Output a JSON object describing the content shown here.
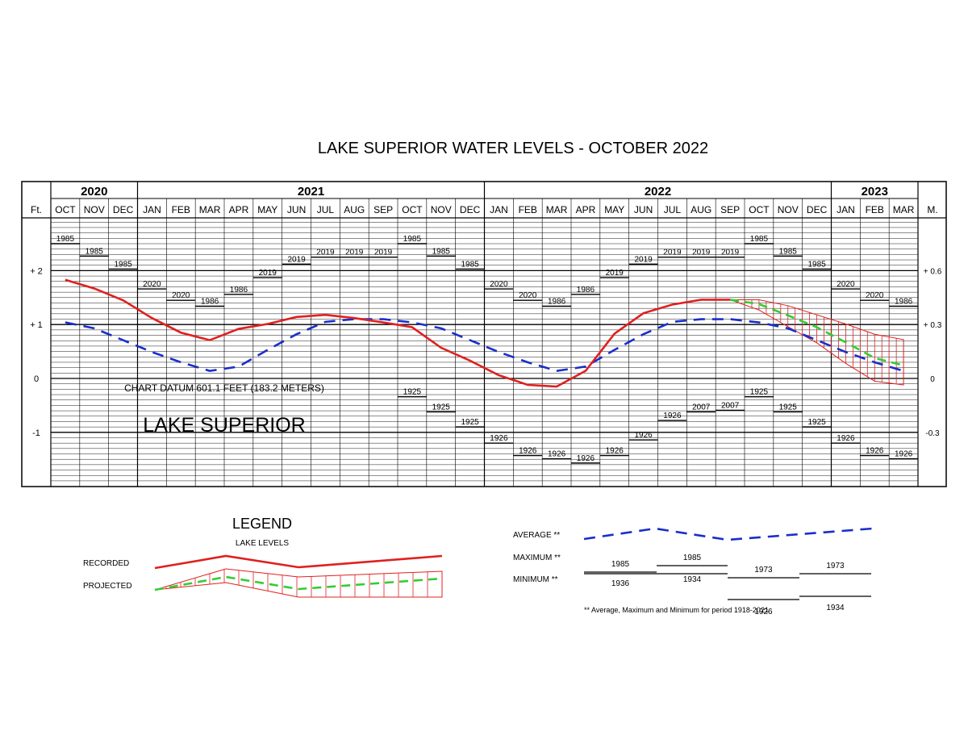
{
  "chart_data": {
    "type": "line",
    "title": "LAKE SUPERIOR WATER LEVELS - OCTOBER 2022",
    "left_unit": "Ft.",
    "right_unit": "M.",
    "years": [
      {
        "label": "2020",
        "span": [
          0,
          3
        ]
      },
      {
        "label": "2021",
        "span": [
          3,
          15
        ]
      },
      {
        "label": "2022",
        "span": [
          15,
          27
        ]
      },
      {
        "label": "2023",
        "span": [
          27,
          30
        ]
      }
    ],
    "months": [
      "OCT",
      "NOV",
      "DEC",
      "JAN",
      "FEB",
      "MAR",
      "APR",
      "MAY",
      "JUN",
      "JUL",
      "AUG",
      "SEP",
      "OCT",
      "NOV",
      "DEC",
      "JAN",
      "FEB",
      "MAR",
      "APR",
      "MAY",
      "JUN",
      "JUL",
      "AUG",
      "SEP",
      "OCT",
      "NOV",
      "DEC",
      "JAN",
      "FEB",
      "MAR"
    ],
    "y_ticks_ft": [
      {
        "value": 2,
        "label": "+ 2"
      },
      {
        "value": 1,
        "label": "+ 1"
      },
      {
        "value": 0,
        "label": "0"
      },
      {
        "value": -1,
        "label": "-1"
      }
    ],
    "y_ticks_m": [
      {
        "value": 2,
        "label": "+ 0.6"
      },
      {
        "value": 1,
        "label": "+ 0.3"
      },
      {
        "value": 0,
        "label": "0"
      },
      {
        "value": -1,
        "label": "-0.3"
      }
    ],
    "ylim_ft": [
      -1.97,
      2.96
    ],
    "x_index_note": "x values are month indices: 0 = OCT 2020 ... 29 = MAR 2023",
    "datum_label": "CHART DATUM  601.1 FEET (183.2 METERS)",
    "lake_label": "LAKE SUPERIOR",
    "series": [
      {
        "name": "RECORDED",
        "color": "#e02020",
        "x": [
          0,
          1,
          2,
          3,
          4,
          5,
          6,
          7,
          8,
          9,
          10,
          11,
          12,
          13,
          14,
          15,
          16,
          17,
          18,
          19,
          20,
          21,
          22,
          23
        ],
        "y": [
          1.83,
          1.67,
          1.45,
          1.12,
          0.85,
          0.71,
          0.92,
          1.01,
          1.14,
          1.18,
          1.12,
          1.04,
          0.95,
          0.57,
          0.33,
          0.06,
          -0.12,
          -0.15,
          0.14,
          0.83,
          1.21,
          1.37,
          1.46,
          1.46
        ]
      },
      {
        "name": "PROJECTED",
        "color": "#33cc33",
        "x": [
          23,
          24,
          25,
          26,
          27,
          28,
          29
        ],
        "y": [
          1.46,
          1.38,
          1.17,
          0.95,
          0.67,
          0.38,
          0.24
        ],
        "range_upper": [
          1.46,
          1.46,
          1.35,
          1.18,
          1.01,
          0.82,
          0.72
        ],
        "range_lower": [
          1.46,
          1.27,
          0.96,
          0.66,
          0.28,
          -0.05,
          -0.12
        ]
      },
      {
        "name": "AVERAGE",
        "color": "#1a2ecc",
        "x": [
          0,
          1,
          2,
          3,
          4,
          5,
          6,
          7,
          8,
          9,
          10,
          11,
          12,
          13,
          14,
          15,
          16,
          17,
          18,
          19,
          20,
          21,
          22,
          23,
          24,
          25,
          26,
          27,
          28,
          29
        ],
        "y": [
          1.04,
          0.93,
          0.71,
          0.49,
          0.3,
          0.14,
          0.22,
          0.53,
          0.82,
          1.05,
          1.1,
          1.1,
          1.04,
          0.93,
          0.71,
          0.49,
          0.3,
          0.14,
          0.22,
          0.53,
          0.82,
          1.05,
          1.1,
          1.1,
          1.04,
          0.93,
          0.71,
          0.49,
          0.3,
          0.14
        ]
      }
    ],
    "maximum_records": [
      {
        "x": 0,
        "year": "1985",
        "y": 2.5
      },
      {
        "x": 1,
        "year": "1985",
        "y": 2.27
      },
      {
        "x": 2,
        "year": "1985",
        "y": 2.03
      },
      {
        "x": 3,
        "year": "2020",
        "y": 1.66
      },
      {
        "x": 4,
        "year": "2020",
        "y": 1.45
      },
      {
        "x": 5,
        "year": "1986",
        "y": 1.34
      },
      {
        "x": 6,
        "year": "1986",
        "y": 1.56
      },
      {
        "x": 7,
        "year": "2019",
        "y": 1.87
      },
      {
        "x": 8,
        "year": "2019",
        "y": 2.12
      },
      {
        "x": 9,
        "year": "2019",
        "y": 2.25
      },
      {
        "x": 10,
        "year": "2019",
        "y": 2.25
      },
      {
        "x": 11,
        "year": "2019",
        "y": 2.25
      },
      {
        "x": 12,
        "year": "1985",
        "y": 2.5
      },
      {
        "x": 13,
        "year": "1985",
        "y": 2.27
      },
      {
        "x": 14,
        "year": "1985",
        "y": 2.03
      },
      {
        "x": 15,
        "year": "2020",
        "y": 1.66
      },
      {
        "x": 16,
        "year": "2020",
        "y": 1.45
      },
      {
        "x": 17,
        "year": "1986",
        "y": 1.34
      },
      {
        "x": 18,
        "year": "1986",
        "y": 1.56
      },
      {
        "x": 19,
        "year": "2019",
        "y": 1.87
      },
      {
        "x": 20,
        "year": "2019",
        "y": 2.12
      },
      {
        "x": 21,
        "year": "2019",
        "y": 2.25
      },
      {
        "x": 22,
        "year": "2019",
        "y": 2.25
      },
      {
        "x": 23,
        "year": "2019",
        "y": 2.25
      },
      {
        "x": 24,
        "year": "1985",
        "y": 2.5
      },
      {
        "x": 25,
        "year": "1985",
        "y": 2.27
      },
      {
        "x": 26,
        "year": "1985",
        "y": 2.03
      },
      {
        "x": 27,
        "year": "2020",
        "y": 1.66
      },
      {
        "x": 28,
        "year": "2020",
        "y": 1.45
      },
      {
        "x": 29,
        "year": "1986",
        "y": 1.34
      }
    ],
    "minimum_records": [
      {
        "x": 12,
        "year": "1925",
        "y": -0.34
      },
      {
        "x": 13,
        "year": "1925",
        "y": -0.62
      },
      {
        "x": 14,
        "year": "1925",
        "y": -0.9
      },
      {
        "x": 15,
        "year": "1926",
        "y": -1.2
      },
      {
        "x": 16,
        "year": "1926",
        "y": -1.43
      },
      {
        "x": 17,
        "year": "1926",
        "y": -1.49
      },
      {
        "x": 18,
        "year": "1926",
        "y": -1.57
      },
      {
        "x": 19,
        "year": "1926",
        "y": -1.43
      },
      {
        "x": 20,
        "year": "1926",
        "y": -1.14
      },
      {
        "x": 21,
        "year": "1926",
        "y": -0.78
      },
      {
        "x": 22,
        "year": "2007",
        "y": -0.62
      },
      {
        "x": 23,
        "year": "2007",
        "y": -0.59
      },
      {
        "x": 24,
        "year": "1925",
        "y": -0.34
      },
      {
        "x": 25,
        "year": "1925",
        "y": -0.62
      },
      {
        "x": 26,
        "year": "1925",
        "y": -0.9
      },
      {
        "x": 27,
        "year": "1926",
        "y": -1.2
      },
      {
        "x": 28,
        "year": "1926",
        "y": -1.43
      },
      {
        "x": 29,
        "year": "1926",
        "y": -1.49
      }
    ],
    "legend": {
      "title": "LEGEND",
      "subtitle": "LAKE LEVELS",
      "recorded_label": "RECORDED",
      "projected_label": "PROJECTED",
      "average_label": "AVERAGE **",
      "maximum_label": "MAXIMUM **",
      "minimum_label": "MINIMUM **",
      "maximum_years": [
        "1985",
        "1985",
        "1973",
        "1973"
      ],
      "minimum_years": [
        "1936",
        "1934",
        "1926",
        "1934"
      ],
      "footnote": "** Average, Maximum and Minimum for period 1918-2021"
    },
    "grid": true
  }
}
